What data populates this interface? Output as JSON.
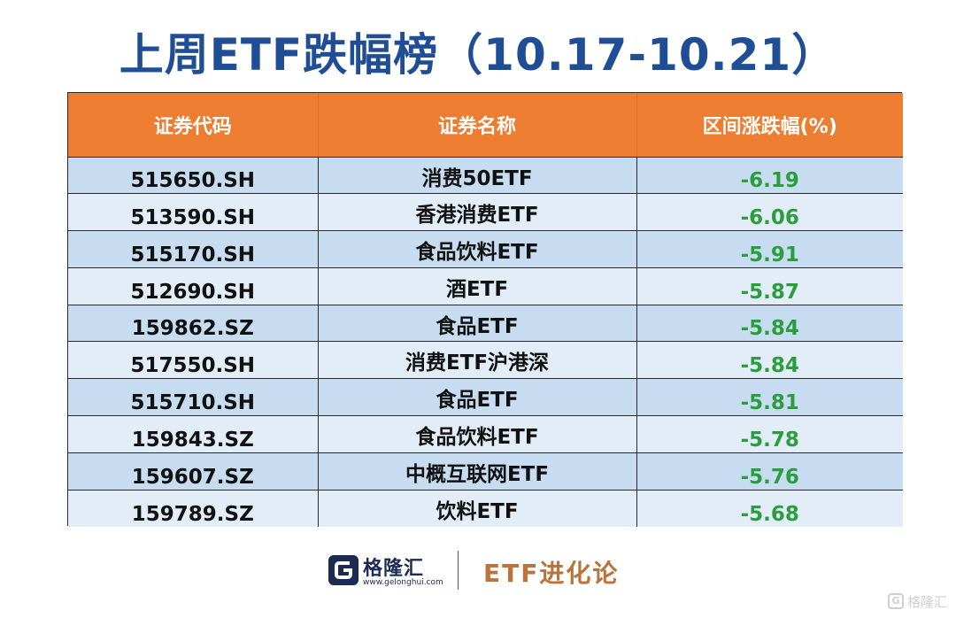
{
  "title": "上周ETF跌幅榜（10.17-10.21）",
  "table": {
    "headers": [
      "证券代码",
      "证券名称",
      "区间涨跌幅(%)"
    ],
    "rows": [
      {
        "code": "515650.SH",
        "name": "消费50ETF",
        "change": "-6.19"
      },
      {
        "code": "513590.SH",
        "name": "香港消费ETF",
        "change": "-6.06"
      },
      {
        "code": "515170.SH",
        "name": "食品饮料ETF",
        "change": "-5.91"
      },
      {
        "code": "512690.SH",
        "name": "酒ETF",
        "change": "-5.87"
      },
      {
        "code": "159862.SZ",
        "name": "食品ETF",
        "change": "-5.84"
      },
      {
        "code": "517550.SH",
        "name": "消费ETF沪港深",
        "change": "-5.84"
      },
      {
        "code": "515710.SH",
        "name": "食品ETF",
        "change": "-5.81"
      },
      {
        "code": "159843.SZ",
        "name": "食品饮料ETF",
        "change": "-5.78"
      },
      {
        "code": "159607.SZ",
        "name": "中概互联网ETF",
        "change": "-5.76"
      },
      {
        "code": "159789.SZ",
        "name": "饮料ETF",
        "change": "-5.68"
      }
    ]
  },
  "footer": {
    "logo_icon": "gelonghui-logo-icon",
    "logo_text": "格隆汇",
    "logo_url": "www.gelonghui.com",
    "tagline": "ETF进化论"
  },
  "watermark": {
    "icon": "gelonghui-watermark-icon",
    "icon_letter": "G",
    "text": "格隆汇"
  },
  "colors": {
    "title": "#1f4e96",
    "header_bg": "#ed7d31",
    "row_odd": "#c7dcf0",
    "row_even": "#e2edf8",
    "negative": "#2a9d3c",
    "tagline": "#b9733b"
  }
}
